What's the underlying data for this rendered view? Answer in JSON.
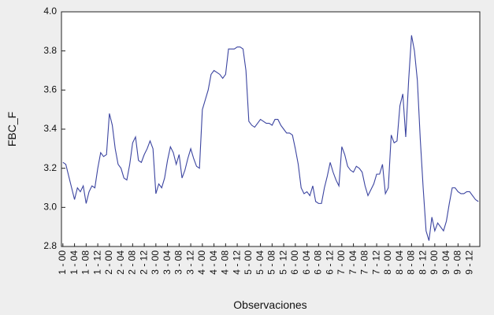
{
  "chart_data": {
    "type": "line",
    "y_label": "FBC_F",
    "x_label": "Observaciones",
    "categories": [
      "1 - 00",
      null,
      null,
      null,
      "1 - 04",
      null,
      null,
      null,
      "1 - 08",
      null,
      null,
      null,
      "1 - 12",
      null,
      null,
      null,
      "2 - 00",
      null,
      null,
      null,
      "2 - 04",
      null,
      null,
      null,
      "2 - 08",
      null,
      null,
      null,
      "2 - 12",
      null,
      null,
      null,
      "3 - 00",
      null,
      null,
      null,
      "3 - 04",
      null,
      null,
      null,
      "3 - 08",
      null,
      null,
      null,
      "3 - 12",
      null,
      null,
      null,
      "4 - 00",
      null,
      null,
      null,
      "4 - 04",
      null,
      null,
      null,
      "4 - 08",
      null,
      null,
      null,
      "4 - 12",
      null,
      null,
      null,
      "5 - 00",
      null,
      null,
      null,
      "5 - 04",
      null,
      null,
      null,
      "5 - 08",
      null,
      null,
      null,
      "5 - 12",
      null,
      null,
      null,
      "6 - 00",
      null,
      null,
      null,
      "6 - 04",
      null,
      null,
      null,
      "6 - 08",
      null,
      null,
      null,
      "6 - 12",
      null,
      null,
      null,
      "7 - 00",
      null,
      null,
      null,
      "7 - 04",
      null,
      null,
      null,
      "7 - 08",
      null,
      null,
      null,
      "7 - 12",
      null,
      null,
      null,
      "8 - 00",
      null,
      null,
      null,
      "8 - 04",
      null,
      null,
      null,
      "8 - 08",
      null,
      null,
      null,
      "8 - 12",
      null,
      null,
      null,
      "9 - 00",
      null,
      null,
      null,
      "9 - 04",
      null,
      null,
      null,
      "9 - 08",
      null,
      null,
      null,
      "9 - 12",
      null,
      null,
      null
    ],
    "series": [
      {
        "color": "#3b44a0",
        "values": [
          3.23,
          3.22,
          3.16,
          3.1,
          3.04,
          3.1,
          3.08,
          3.11,
          3.02,
          3.08,
          3.11,
          3.1,
          3.2,
          3.28,
          3.26,
          3.27,
          3.48,
          3.42,
          3.3,
          3.22,
          3.2,
          3.15,
          3.14,
          3.22,
          3.33,
          3.36,
          3.24,
          3.23,
          3.27,
          3.3,
          3.34,
          3.3,
          3.07,
          3.12,
          3.1,
          3.15,
          3.24,
          3.31,
          3.28,
          3.22,
          3.27,
          3.15,
          3.19,
          3.25,
          3.3,
          3.25,
          3.21,
          3.2,
          3.5,
          3.55,
          3.6,
          3.68,
          3.7,
          3.69,
          3.68,
          3.66,
          3.68,
          3.81,
          3.81,
          3.81,
          3.82,
          3.82,
          3.81,
          3.7,
          3.44,
          3.42,
          3.41,
          3.43,
          3.45,
          3.44,
          3.43,
          3.43,
          3.42,
          3.45,
          3.45,
          3.42,
          3.4,
          3.38,
          3.38,
          3.37,
          3.3,
          3.22,
          3.1,
          3.07,
          3.08,
          3.06,
          3.11,
          3.03,
          3.02,
          3.02,
          3.1,
          3.16,
          3.23,
          3.18,
          3.14,
          3.11,
          3.31,
          3.27,
          3.21,
          3.19,
          3.18,
          3.21,
          3.2,
          3.18,
          3.11,
          3.06,
          3.09,
          3.12,
          3.17,
          3.17,
          3.22,
          3.07,
          3.1,
          3.37,
          3.33,
          3.34,
          3.52,
          3.58,
          3.36,
          3.65,
          3.88,
          3.8,
          3.65,
          3.35,
          3.1,
          2.88,
          2.83,
          2.95,
          2.88,
          2.92,
          2.9,
          2.88,
          2.93,
          3.02,
          3.1,
          3.1,
          3.08,
          3.07,
          3.07,
          3.08,
          3.08,
          3.06,
          3.04,
          3.03
        ]
      }
    ],
    "ylim": [
      2.8,
      4.0
    ],
    "yticks": [
      2.8,
      {
        "value": 3.0,
        "label": "3.0"
      },
      3.2,
      3.4,
      3.6,
      3.8,
      {
        "value": 4.0,
        "label": "4.0"
      }
    ]
  }
}
